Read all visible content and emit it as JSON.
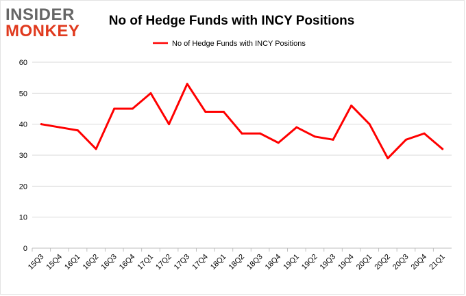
{
  "logo": {
    "line1": "INSIDER",
    "line2": "MONKEY"
  },
  "chart_data": {
    "type": "line",
    "title": "No of Hedge Funds with INCY Positions",
    "xlabel": "",
    "ylabel": "",
    "ylim": [
      0,
      60
    ],
    "yticks": [
      0,
      10,
      20,
      30,
      40,
      50,
      60
    ],
    "grid": true,
    "legend_position": "top-center",
    "categories": [
      "15Q3",
      "15Q4",
      "16Q1",
      "16Q2",
      "16Q3",
      "16Q4",
      "17Q1",
      "17Q2",
      "17Q3",
      "17Q4",
      "18Q1",
      "18Q2",
      "18Q3",
      "18Q4",
      "19Q1",
      "19Q2",
      "19Q3",
      "19Q4",
      "20Q1",
      "20Q2",
      "20Q3",
      "20Q4",
      "21Q1"
    ],
    "series": [
      {
        "name": "No of Hedge Funds with INCY  Positions",
        "color": "#ff0000",
        "values": [
          40,
          39,
          38,
          32,
          45,
          45,
          50,
          40,
          53,
          44,
          44,
          37,
          37,
          34,
          39,
          36,
          35,
          46,
          40,
          29,
          35,
          37,
          32
        ]
      }
    ]
  }
}
